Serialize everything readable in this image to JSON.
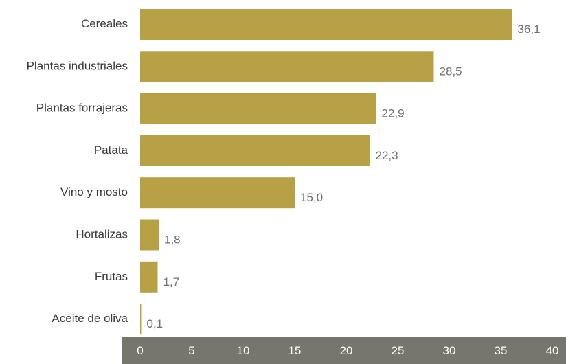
{
  "chart_data": {
    "type": "bar",
    "orientation": "horizontal",
    "categories": [
      "Cereales",
      "Plantas industriales",
      "Plantas forrajeras",
      "Patata",
      "Vino y mosto",
      "Hortalizas",
      "Frutas",
      "Aceite de oliva"
    ],
    "values": [
      36.1,
      28.5,
      22.9,
      22.3,
      15.0,
      1.8,
      1.7,
      0.1
    ],
    "value_labels": [
      "36,1",
      "28,5",
      "22,9",
      "22,3",
      "15,0",
      "1,8",
      "1,7",
      "0,1"
    ],
    "xlim": [
      0,
      40
    ],
    "x_ticks": [
      0,
      5,
      10,
      15,
      20,
      25,
      30,
      35,
      40
    ],
    "x_tick_labels": [
      "0",
      "5",
      "10",
      "15",
      "20",
      "25",
      "30",
      "35",
      "40"
    ],
    "grid": false,
    "legend": "none",
    "colors": {
      "bar": "#b8a044",
      "axis_band": "#76766c",
      "category_text": "#3a3a3a",
      "value_text": "#6f6f6f",
      "tick_text": "#ffffff"
    }
  }
}
